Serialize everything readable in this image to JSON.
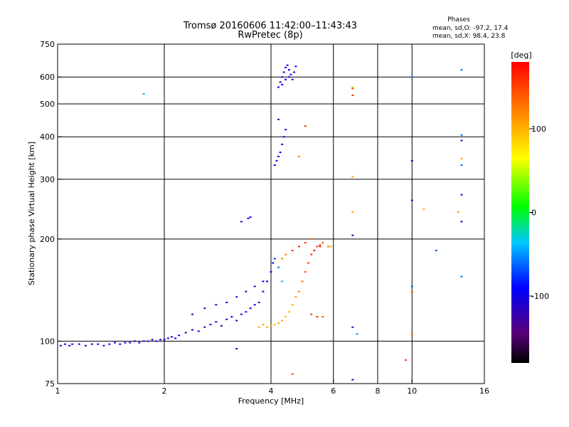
{
  "chart_data": {
    "type": "scatter",
    "title": "Tromsø 20160606 11:42:00–11:43:43",
    "subtitle": "RwPretec (8p)",
    "xlabel": "Frequency [MHz]",
    "ylabel": "Stationary phase Virtual Height [km]",
    "x_scale": "log",
    "y_scale": "log",
    "xlim": [
      1,
      16
    ],
    "ylim": [
      75,
      750
    ],
    "x_ticks": [
      1,
      2,
      4,
      6,
      8,
      10,
      16
    ],
    "x_tick_labels": [
      "1",
      "2",
      "4",
      "6",
      "8",
      "10",
      "16"
    ],
    "x_grid_lines": [
      2,
      4,
      6,
      8,
      10
    ],
    "y_ticks": [
      75,
      100,
      200,
      300,
      400,
      500,
      600,
      750
    ],
    "y_tick_labels": [
      "75",
      "100",
      "200",
      "300",
      "400",
      "500",
      "600",
      "750"
    ],
    "y_grid_lines": [
      100,
      200,
      300,
      400,
      500,
      600
    ],
    "grid": true,
    "stats": {
      "heading": "Phases",
      "line_o": "mean, sd,O:  -97.2, 17.4",
      "line_x": "mean, sd,X:  98.4, 23.8"
    },
    "colorbar": {
      "label": "[deg]",
      "ticks": [
        100,
        0,
        -100
      ],
      "tick_labels": [
        "100",
        "0",
        "-100"
      ],
      "range": [
        -180,
        180
      ],
      "placement": "right"
    },
    "series": [
      {
        "description_values_are_freq_height_phase": true,
        "points": [
          [
            1.02,
            97,
            -110
          ],
          [
            1.05,
            98,
            -105
          ],
          [
            1.08,
            97,
            -100
          ],
          [
            1.1,
            98,
            -110
          ],
          [
            1.15,
            98,
            -100
          ],
          [
            1.2,
            97,
            -110
          ],
          [
            1.25,
            98,
            -105
          ],
          [
            1.3,
            98,
            -95
          ],
          [
            1.35,
            97,
            -110
          ],
          [
            1.4,
            98,
            -100
          ],
          [
            1.45,
            99,
            -105
          ],
          [
            1.5,
            98,
            -110
          ],
          [
            1.55,
            99,
            -100
          ],
          [
            1.6,
            99,
            -95
          ],
          [
            1.65,
            100,
            -110
          ],
          [
            1.7,
            99,
            -100
          ],
          [
            1.75,
            100,
            -105
          ],
          [
            1.8,
            100,
            -110
          ],
          [
            1.85,
            101,
            -100
          ],
          [
            1.9,
            100,
            -95
          ],
          [
            1.95,
            101,
            -110
          ],
          [
            2.0,
            101,
            -100
          ],
          [
            2.05,
            102,
            -105
          ],
          [
            2.1,
            103,
            -110
          ],
          [
            2.15,
            102,
            -100
          ],
          [
            2.2,
            104,
            -95
          ],
          [
            2.3,
            106,
            -110
          ],
          [
            2.4,
            108,
            -100
          ],
          [
            2.5,
            107,
            -105
          ],
          [
            2.6,
            110,
            -110
          ],
          [
            2.7,
            112,
            -100
          ],
          [
            2.8,
            114,
            -95
          ],
          [
            2.9,
            111,
            -110
          ],
          [
            3.0,
            116,
            -100
          ],
          [
            3.1,
            118,
            -105
          ],
          [
            3.2,
            115,
            -110
          ],
          [
            3.3,
            120,
            -100
          ],
          [
            3.4,
            122,
            -95
          ],
          [
            3.5,
            125,
            -110
          ],
          [
            3.6,
            128,
            -100
          ],
          [
            3.7,
            130,
            -120
          ],
          [
            3.8,
            140,
            -110
          ],
          [
            3.9,
            150,
            -100
          ],
          [
            4.0,
            160,
            -95
          ],
          [
            4.05,
            170,
            -100
          ],
          [
            4.1,
            175,
            -80
          ],
          [
            4.2,
            165,
            -60
          ],
          [
            4.3,
            150,
            -40
          ],
          [
            2.4,
            120,
            -105
          ],
          [
            2.6,
            125,
            -110
          ],
          [
            2.8,
            128,
            -100
          ],
          [
            3.0,
            130,
            -115
          ],
          [
            3.2,
            135,
            -100
          ],
          [
            3.4,
            140,
            -110
          ],
          [
            3.6,
            145,
            -105
          ],
          [
            3.8,
            150,
            -100
          ],
          [
            3.7,
            110,
            100
          ],
          [
            3.8,
            112,
            100
          ],
          [
            3.9,
            110,
            105
          ],
          [
            4.0,
            111,
            100
          ],
          [
            4.1,
            112,
            95
          ],
          [
            4.2,
            113,
            100
          ],
          [
            4.3,
            115,
            105
          ],
          [
            4.4,
            118,
            100
          ],
          [
            4.5,
            122,
            95
          ],
          [
            4.6,
            128,
            100
          ],
          [
            4.7,
            135,
            110
          ],
          [
            4.8,
            140,
            120
          ],
          [
            4.9,
            150,
            130
          ],
          [
            5.0,
            160,
            140
          ],
          [
            5.1,
            170,
            150
          ],
          [
            5.2,
            180,
            160
          ],
          [
            5.3,
            185,
            165
          ],
          [
            5.4,
            190,
            160
          ],
          [
            5.5,
            192,
            150
          ],
          [
            5.6,
            195,
            140
          ],
          [
            5.8,
            190,
            130
          ],
          [
            4.3,
            175,
            120
          ],
          [
            4.4,
            180,
            125
          ],
          [
            4.6,
            185,
            160
          ],
          [
            4.8,
            190,
            165
          ],
          [
            5.0,
            195,
            160
          ],
          [
            5.2,
            200,
            150
          ],
          [
            5.5,
            190,
            160
          ],
          [
            4.1,
            330,
            -100
          ],
          [
            4.15,
            340,
            -95
          ],
          [
            4.2,
            350,
            -110
          ],
          [
            4.25,
            360,
            -100
          ],
          [
            4.3,
            380,
            -105
          ],
          [
            4.35,
            400,
            -110
          ],
          [
            4.4,
            420,
            -100
          ],
          [
            4.2,
            450,
            -90
          ],
          [
            4.2,
            560,
            -100
          ],
          [
            4.25,
            580,
            -110
          ],
          [
            4.3,
            600,
            -105
          ],
          [
            4.35,
            620,
            -100
          ],
          [
            4.4,
            640,
            -95
          ],
          [
            4.45,
            650,
            -110
          ],
          [
            4.5,
            630,
            -100
          ],
          [
            4.55,
            610,
            -105
          ],
          [
            4.6,
            590,
            -110
          ],
          [
            4.65,
            620,
            -100
          ],
          [
            4.7,
            645,
            -95
          ],
          [
            4.3,
            570,
            -90
          ],
          [
            4.4,
            590,
            -100
          ],
          [
            4.5,
            600,
            -110
          ],
          [
            1.75,
            535,
            -40
          ],
          [
            3.3,
            225,
            -100
          ],
          [
            3.45,
            230,
            -95
          ],
          [
            3.5,
            232,
            -100
          ],
          [
            3.2,
            95,
            -110
          ],
          [
            4.6,
            80,
            150
          ],
          [
            5.0,
            430,
            160
          ],
          [
            4.8,
            350,
            120
          ],
          [
            6.8,
            110,
            -110
          ],
          [
            7.0,
            105,
            -50
          ],
          [
            6.8,
            77,
            -110
          ],
          [
            6.8,
            560,
            40
          ],
          [
            6.8,
            555,
            140
          ],
          [
            6.8,
            530,
            160
          ],
          [
            6.8,
            305,
            100
          ],
          [
            6.8,
            240,
            100
          ],
          [
            6.8,
            205,
            -110
          ],
          [
            10.0,
            600,
            -60
          ],
          [
            10.0,
            340,
            -110
          ],
          [
            10.0,
            260,
            -110
          ],
          [
            10.0,
            145,
            -60
          ],
          [
            10.0,
            140,
            140
          ],
          [
            10.0,
            105,
            130
          ],
          [
            9.6,
            88,
            160
          ],
          [
            10.8,
            245,
            100
          ],
          [
            11.7,
            185,
            -70
          ],
          [
            13.5,
            240,
            110
          ],
          [
            13.8,
            630,
            -60
          ],
          [
            13.8,
            405,
            -60
          ],
          [
            13.8,
            390,
            -110
          ],
          [
            13.8,
            345,
            110
          ],
          [
            13.8,
            330,
            -60
          ],
          [
            13.8,
            270,
            -110
          ],
          [
            13.8,
            225,
            -110
          ],
          [
            13.8,
            155,
            -60
          ],
          [
            5.2,
            120,
            160
          ],
          [
            5.4,
            118,
            160
          ],
          [
            5.6,
            118,
            140
          ],
          [
            5.9,
            190,
            100
          ]
        ]
      }
    ]
  }
}
